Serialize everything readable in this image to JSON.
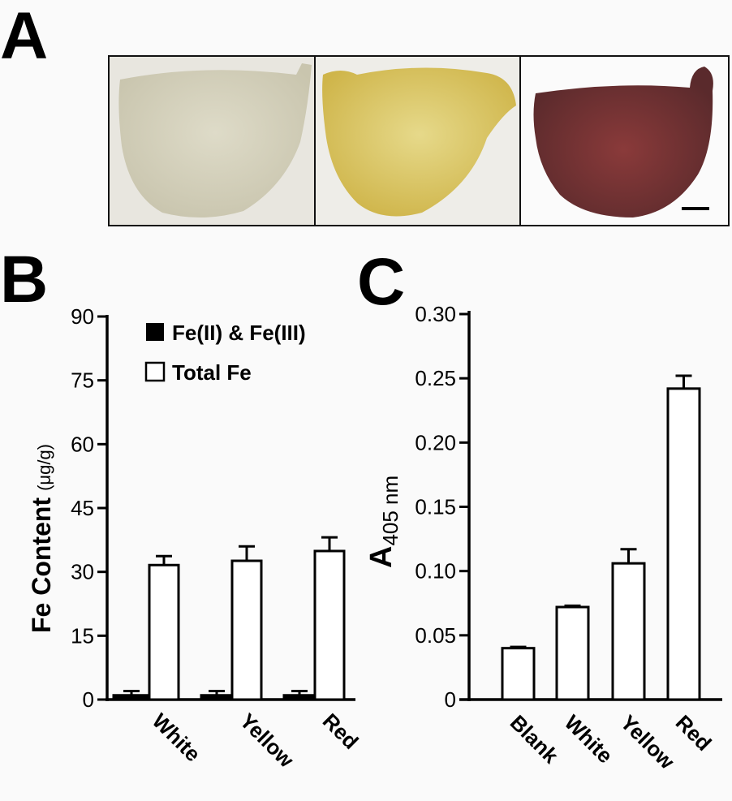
{
  "panels": {
    "a": "A",
    "b": "B",
    "c": "C"
  },
  "photos": [
    {
      "name": "white",
      "color": "#d6d2bf"
    },
    {
      "name": "yellow",
      "color": "#dcc867"
    },
    {
      "name": "red",
      "color": "#7a3434"
    }
  ],
  "chart_data": [
    {
      "type": "bar",
      "panel": "B",
      "ylabel": "Fe Content",
      "ylabel_unit": "(μg/g)",
      "ylim": [
        0,
        90
      ],
      "yticks": [
        0,
        15,
        30,
        45,
        60,
        75,
        90
      ],
      "categories": [
        "White",
        "Yellow",
        "Red"
      ],
      "legend_placement": "top-left",
      "series": [
        {
          "name": "Fe(II) & Fe(III)",
          "fill": "#000000",
          "values": [
            1,
            1,
            1
          ],
          "errors": [
            1,
            1,
            1
          ]
        },
        {
          "name": "Total Fe",
          "fill": "#ffffff",
          "values": [
            31.6,
            32.6,
            34.9
          ],
          "errors": [
            2.1,
            3.4,
            3.2
          ]
        }
      ]
    },
    {
      "type": "bar",
      "panel": "C",
      "ylabel_main": "A",
      "ylabel_sub": "405 nm",
      "ylim": [
        0,
        0.3
      ],
      "yticks": [
        "0",
        "0.05",
        "0.10",
        "0.15",
        "0.20",
        "0.25",
        "0.30"
      ],
      "categories": [
        "Blank",
        "White",
        "Yellow",
        "Red"
      ],
      "values": [
        0.04,
        0.072,
        0.106,
        0.242
      ],
      "errors": [
        0.001,
        0.001,
        0.011,
        0.01
      ]
    }
  ]
}
